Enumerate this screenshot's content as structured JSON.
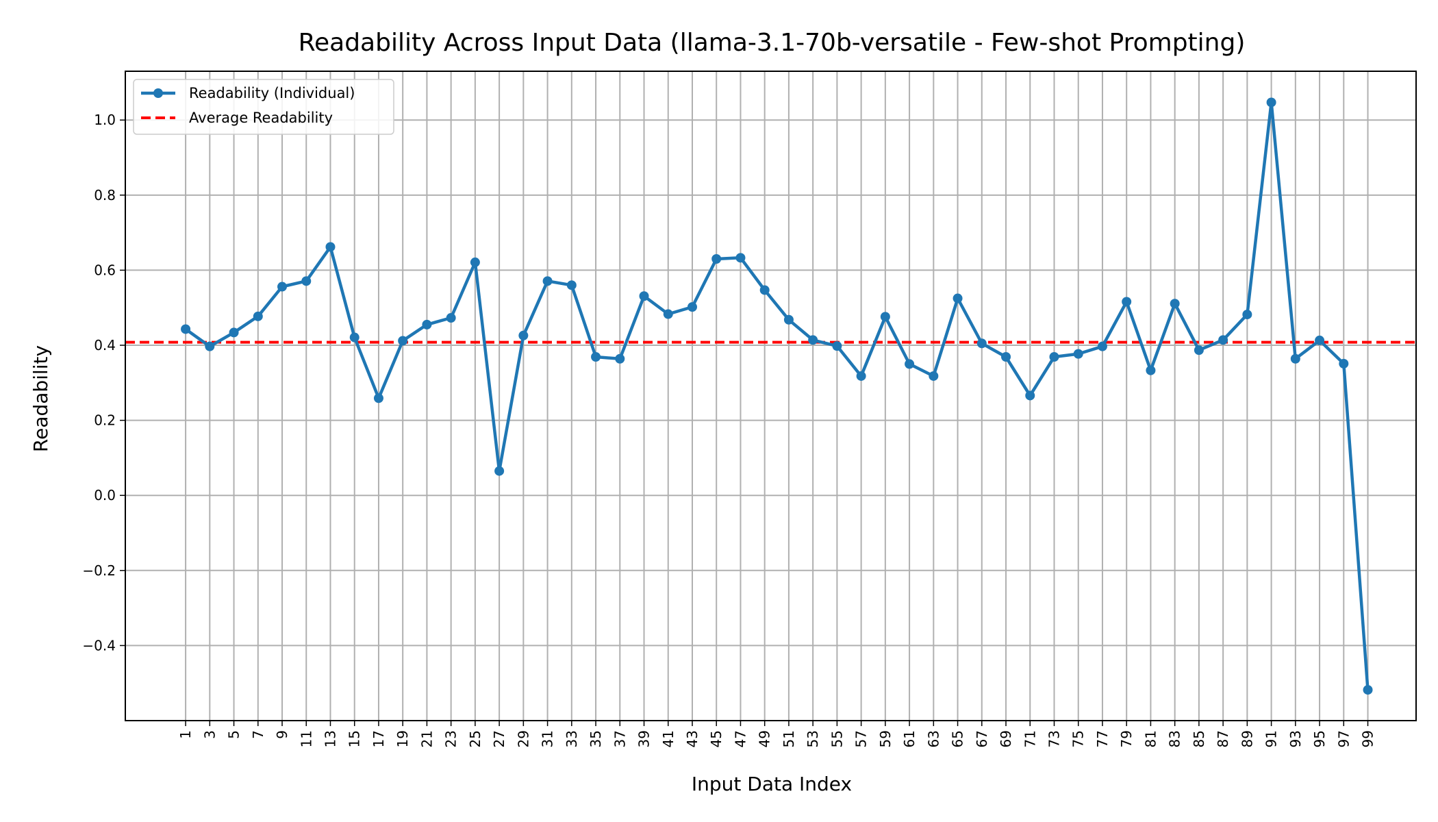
{
  "chart_data": {
    "type": "line",
    "title": "Readability Across Input Data (llama-3.1-70b-versatile - Few-shot Prompting)",
    "xlabel": "Input Data Index",
    "ylabel": "Readability",
    "x": [
      1,
      3,
      5,
      7,
      9,
      11,
      13,
      15,
      17,
      19,
      21,
      23,
      25,
      27,
      29,
      31,
      33,
      35,
      37,
      39,
      41,
      43,
      45,
      47,
      49,
      51,
      53,
      55,
      57,
      59,
      61,
      63,
      65,
      67,
      69,
      71,
      73,
      75,
      77,
      79,
      81,
      83,
      85,
      87,
      89,
      91,
      93,
      95,
      97,
      99
    ],
    "x_tick_labels": [
      "1",
      "3",
      "5",
      "7",
      "9",
      "11",
      "13",
      "15",
      "17",
      "19",
      "21",
      "23",
      "25",
      "27",
      "29",
      "31",
      "33",
      "35",
      "37",
      "39",
      "41",
      "43",
      "45",
      "47",
      "49",
      "51",
      "53",
      "55",
      "57",
      "59",
      "61",
      "63",
      "65",
      "67",
      "69",
      "71",
      "73",
      "75",
      "77",
      "79",
      "81",
      "83",
      "85",
      "87",
      "89",
      "91",
      "93",
      "95",
      "97",
      "99"
    ],
    "xlim": [
      -4,
      103
    ],
    "ylim": [
      -0.6,
      1.13
    ],
    "y_ticks": [
      -0.4,
      -0.2,
      0.0,
      0.2,
      0.4,
      0.6,
      0.8,
      1.0
    ],
    "y_tick_labels": [
      "−0.4",
      "−0.2",
      "0.0",
      "0.2",
      "0.4",
      "0.6",
      "0.8",
      "1.0"
    ],
    "grid": true,
    "legend_position": "top-left",
    "series": [
      {
        "name": "Readability (Individual)",
        "style": "solid-with-markers",
        "color": "#1f77b4",
        "values": [
          0.443,
          0.397,
          0.434,
          0.477,
          0.556,
          0.571,
          0.662,
          0.421,
          0.259,
          0.412,
          0.455,
          0.473,
          0.621,
          0.065,
          0.426,
          0.571,
          0.56,
          0.369,
          0.364,
          0.531,
          0.483,
          0.502,
          0.63,
          0.633,
          0.547,
          0.468,
          0.414,
          0.398,
          0.318,
          0.476,
          0.35,
          0.318,
          0.525,
          0.405,
          0.369,
          0.266,
          0.369,
          0.377,
          0.397,
          0.516,
          0.333,
          0.511,
          0.387,
          0.414,
          0.482,
          1.047,
          0.364,
          0.413,
          0.351,
          -0.518
        ]
      },
      {
        "name": "Average Readability",
        "style": "dashed",
        "color": "#ff0000",
        "value": 0.408
      }
    ]
  }
}
